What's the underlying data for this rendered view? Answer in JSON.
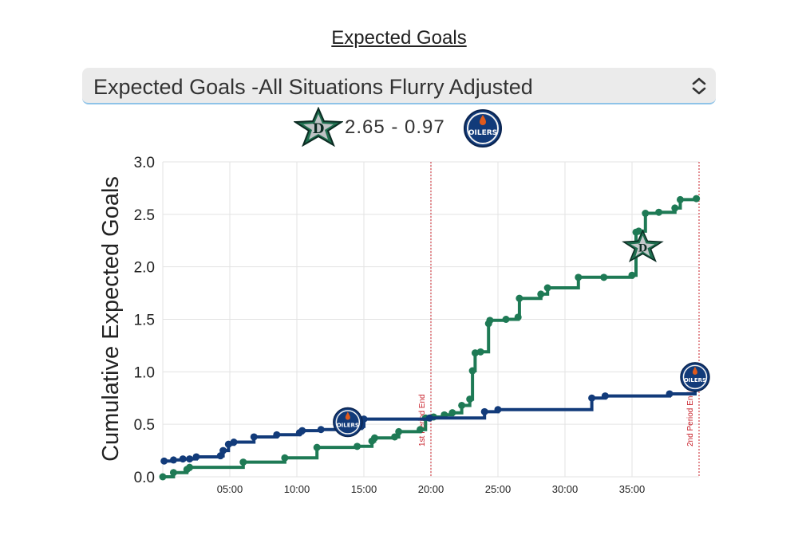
{
  "page": {
    "title": "Expected Goals",
    "select_value": "Expected Goals -All Situations Flurry Adjusted",
    "score_text": "2.65 - 0.97"
  },
  "icons": {
    "home_team": "dallas-stars-star-logo-icon",
    "away_team": "edmonton-oilers-logo-icon",
    "select_arrow": "chevron-up-down-icon"
  },
  "colors": {
    "stars_green": "#1e7a55",
    "oilers_blue": "#123b7a",
    "oilers_orange": "#e05a1c",
    "period_line": "#c8202a",
    "grid": "#e3e3e3"
  },
  "chart_data": {
    "type": "line",
    "step": true,
    "ylabel": "Cumulative Expected Goals",
    "xlabel": "",
    "xlim_minutes": [
      0,
      40
    ],
    "ylim": [
      0,
      3.0
    ],
    "yticks": [
      "0.0",
      "0.5",
      "1.0",
      "1.5",
      "2.0",
      "2.5",
      "3.0"
    ],
    "xticks": [
      {
        "minute": 5,
        "label": "05:00"
      },
      {
        "minute": 10,
        "label": "10:00"
      },
      {
        "minute": 15,
        "label": "15:00"
      },
      {
        "minute": 20,
        "label": "20:00"
      },
      {
        "minute": 25,
        "label": "25:00"
      },
      {
        "minute": 30,
        "label": "30:00"
      },
      {
        "minute": 35,
        "label": "35:00"
      }
    ],
    "grid": true,
    "vlines": [
      {
        "minute": 20,
        "label": "1st Period End"
      },
      {
        "minute": 40,
        "label": "2nd Period End"
      }
    ],
    "series": [
      {
        "team": "Stars",
        "color": "#1e7a55",
        "points": [
          [
            0,
            0.0
          ],
          [
            0.8,
            0.04
          ],
          [
            1.8,
            0.07
          ],
          [
            2.0,
            0.09
          ],
          [
            6.0,
            0.14
          ],
          [
            9.1,
            0.18
          ],
          [
            11.5,
            0.28
          ],
          [
            14.5,
            0.29
          ],
          [
            15.6,
            0.34
          ],
          [
            15.8,
            0.37
          ],
          [
            17.3,
            0.38
          ],
          [
            17.6,
            0.43
          ],
          [
            19.2,
            0.45
          ],
          [
            19.6,
            0.56
          ],
          [
            20.2,
            0.57
          ],
          [
            21.0,
            0.59
          ],
          [
            21.6,
            0.61
          ],
          [
            22.3,
            0.68
          ],
          [
            22.9,
            0.74
          ],
          [
            23.1,
            1.01
          ],
          [
            23.3,
            1.18
          ],
          [
            23.7,
            1.19
          ],
          [
            24.3,
            1.46
          ],
          [
            24.4,
            1.49
          ],
          [
            25.6,
            1.5
          ],
          [
            26.5,
            1.52
          ],
          [
            26.6,
            1.7
          ],
          [
            28.2,
            1.74
          ],
          [
            28.7,
            1.8
          ],
          [
            31.0,
            1.9
          ],
          [
            32.9,
            1.9
          ],
          [
            35.0,
            1.92
          ],
          [
            35.3,
            2.33
          ],
          [
            35.5,
            2.34
          ],
          [
            36.0,
            2.51
          ],
          [
            37.0,
            2.52
          ],
          [
            38.2,
            2.56
          ],
          [
            38.6,
            2.64
          ],
          [
            39.8,
            2.65
          ]
        ]
      },
      {
        "team": "Oilers",
        "color": "#123b7a",
        "points": [
          [
            0.1,
            0.15
          ],
          [
            0.8,
            0.16
          ],
          [
            1.5,
            0.17
          ],
          [
            2.0,
            0.17
          ],
          [
            2.5,
            0.19
          ],
          [
            4.3,
            0.2
          ],
          [
            4.5,
            0.25
          ],
          [
            4.9,
            0.31
          ],
          [
            5.3,
            0.33
          ],
          [
            6.8,
            0.38
          ],
          [
            8.5,
            0.4
          ],
          [
            10.2,
            0.42
          ],
          [
            10.4,
            0.44
          ],
          [
            11.8,
            0.45
          ],
          [
            13.8,
            0.46
          ],
          [
            14.8,
            0.48
          ],
          [
            15.0,
            0.55
          ],
          [
            19.9,
            0.56
          ],
          [
            24.0,
            0.62
          ],
          [
            25.0,
            0.64
          ],
          [
            32.0,
            0.75
          ],
          [
            33.0,
            0.77
          ],
          [
            37.8,
            0.79
          ],
          [
            39.7,
            0.97
          ]
        ]
      }
    ],
    "end_logos": [
      {
        "team": "Stars",
        "minute": 35.8,
        "value": 2.2,
        "icon": "dallas-stars-star-logo-icon"
      },
      {
        "team": "Oilers",
        "minute": 39.7,
        "value": 0.95,
        "icon": "edmonton-oilers-logo-icon"
      },
      {
        "team": "Oilers",
        "minute": 13.8,
        "value": 0.52,
        "icon": "edmonton-oilers-logo-icon"
      }
    ]
  }
}
